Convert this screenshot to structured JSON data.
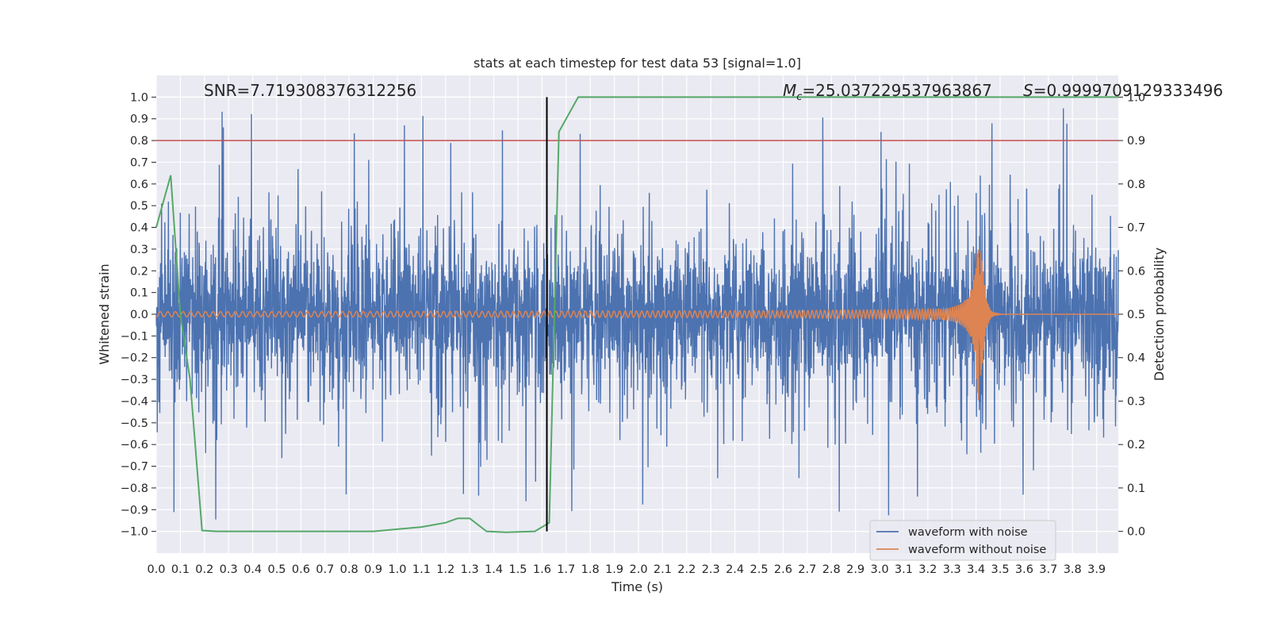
{
  "chart_data": {
    "type": "line",
    "title": "stats at each timestep for test data 53 [signal=1.0]",
    "xlabel": "Time (s)",
    "ylabel": "Whitened strain",
    "ylabel_right": "Detection probability",
    "xlim": [
      0.0,
      3.99
    ],
    "ylim": [
      -1.1,
      1.1
    ],
    "ylim_right": [
      -0.05,
      1.05
    ],
    "grid": true,
    "x_ticks": [
      "0.0",
      "0.1",
      "0.2",
      "0.3",
      "0.4",
      "0.5",
      "0.6",
      "0.7",
      "0.8",
      "0.9",
      "1.0",
      "1.1",
      "1.2",
      "1.3",
      "1.4",
      "1.5",
      "1.6",
      "1.7",
      "1.8",
      "1.9",
      "2.0",
      "2.1",
      "2.2",
      "2.3",
      "2.4",
      "2.5",
      "2.6",
      "2.7",
      "2.8",
      "2.9",
      "3.0",
      "3.1",
      "3.2",
      "3.3",
      "3.4",
      "3.5",
      "3.6",
      "3.7",
      "3.8",
      "3.9"
    ],
    "y_ticks": [
      "1.0",
      "0.9",
      "0.8",
      "0.7",
      "0.6",
      "0.5",
      "0.4",
      "0.3",
      "0.2",
      "0.1",
      "0.0",
      "−0.1",
      "−0.2",
      "−0.3",
      "−0.4",
      "−0.5",
      "−0.6",
      "−0.7",
      "−0.8",
      "−0.9",
      "−1.0"
    ],
    "y_ticks_right": [
      "1.0",
      "0.9",
      "0.8",
      "0.7",
      "0.6",
      "0.5",
      "0.4",
      "0.3",
      "0.2",
      "0.1",
      "0.0"
    ],
    "annotations": {
      "snr": "SNR=7.719308376312256",
      "mc_symbol": "M",
      "mc_sub": "c",
      "mc_value": "=25.037229537963867",
      "s_symbol": "S",
      "s_value": "=0.9999709129333496"
    },
    "threshold_line": {
      "axis": "right",
      "value": 0.9,
      "color": "#c44e52"
    },
    "vertical_line": {
      "x": 1.62,
      "y_range": [
        -1.0,
        1.0
      ],
      "color": "#000000"
    },
    "series": [
      {
        "name": "waveform with noise",
        "color": "#4c72b0",
        "axis": "left",
        "description": "whitened noisy strain, dense noise within about ±0.4, spikes up to about ±1.0",
        "amplitude_range": [
          -1.0,
          1.0
        ]
      },
      {
        "name": "waveform without noise",
        "color": "#dd8452",
        "axis": "left",
        "description": "chirp signal growing in amplitude and frequency, merging near t=3.42 s",
        "merger_time": 3.42,
        "peak_amplitude": 0.4
      },
      {
        "name": "detection probability",
        "color": "#55a868",
        "axis": "right",
        "x": [
          0.0,
          0.06,
          0.1,
          0.14,
          0.19,
          0.25,
          0.4,
          0.6,
          0.8,
          0.9,
          1.0,
          1.1,
          1.2,
          1.25,
          1.3,
          1.37,
          1.45,
          1.57,
          1.63,
          1.67,
          1.75,
          3.99
        ],
        "values": [
          0.7,
          0.82,
          0.5,
          0.35,
          0.002,
          0.0,
          0.0,
          0.0,
          0.0,
          0.0,
          0.005,
          0.01,
          0.02,
          0.03,
          0.03,
          0.0,
          -0.002,
          0.0,
          0.02,
          0.92,
          1.0,
          1.0
        ]
      }
    ],
    "legend": {
      "position": "bottom-right",
      "entries": [
        {
          "label": "waveform with noise",
          "color": "#4c72b0"
        },
        {
          "label": "waveform without noise",
          "color": "#dd8452"
        }
      ]
    }
  }
}
